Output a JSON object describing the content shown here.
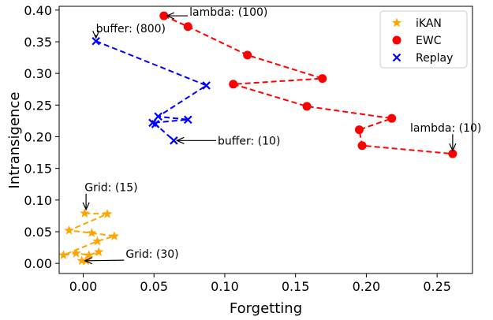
{
  "chart_data": {
    "type": "scatter",
    "title": "",
    "xlabel": "Forgetting",
    "ylabel": "Intransigence",
    "xlim": [
      -0.017,
      0.275
    ],
    "ylim": [
      -0.016,
      0.406
    ],
    "xticks": [
      0.0,
      0.05,
      0.1,
      0.15,
      0.2,
      0.25
    ],
    "xtick_labels": [
      "0.00",
      "0.05",
      "0.10",
      "0.15",
      "0.20",
      "0.25"
    ],
    "yticks": [
      0.0,
      0.05,
      0.1,
      0.15,
      0.2,
      0.25,
      0.3,
      0.35,
      0.4
    ],
    "ytick_labels": [
      "0.00",
      "0.05",
      "0.10",
      "0.15",
      "0.20",
      "0.25",
      "0.30",
      "0.35",
      "0.40"
    ],
    "grid": false,
    "legend_position": "top-right",
    "series": [
      {
        "name": "iKAN",
        "marker": "star",
        "color": "#FFA500",
        "linestyle": "dashed",
        "points": [
          {
            "x": 0.001,
            "y": 0.079
          },
          {
            "x": 0.017,
            "y": 0.078
          },
          {
            "x": -0.01,
            "y": 0.052
          },
          {
            "x": 0.006,
            "y": 0.048
          },
          {
            "x": 0.022,
            "y": 0.043
          },
          {
            "x": 0.01,
            "y": 0.035
          },
          {
            "x": -0.014,
            "y": 0.013
          },
          {
            "x": -0.005,
            "y": 0.016
          },
          {
            "x": 0.004,
            "y": 0.013
          },
          {
            "x": 0.011,
            "y": 0.018
          },
          {
            "x": 0.002,
            "y": 0.004
          },
          {
            "x": -0.001,
            "y": 0.004
          }
        ]
      },
      {
        "name": "EWC",
        "marker": "circle",
        "color": "#FF0000",
        "linestyle": "dashed",
        "points": [
          {
            "x": 0.057,
            "y": 0.391
          },
          {
            "x": 0.074,
            "y": 0.374
          },
          {
            "x": 0.116,
            "y": 0.329
          },
          {
            "x": 0.169,
            "y": 0.292
          },
          {
            "x": 0.106,
            "y": 0.283
          },
          {
            "x": 0.158,
            "y": 0.248
          },
          {
            "x": 0.218,
            "y": 0.229
          },
          {
            "x": 0.195,
            "y": 0.211
          },
          {
            "x": 0.197,
            "y": 0.186
          },
          {
            "x": 0.261,
            "y": 0.173
          }
        ]
      },
      {
        "name": "Replay",
        "marker": "x",
        "color": "#0000FF",
        "linestyle": "dashed",
        "points": [
          {
            "x": 0.009,
            "y": 0.351
          },
          {
            "x": 0.087,
            "y": 0.281
          },
          {
            "x": 0.053,
            "y": 0.232
          },
          {
            "x": 0.074,
            "y": 0.227
          },
          {
            "x": 0.049,
            "y": 0.222
          },
          {
            "x": 0.051,
            "y": 0.22
          },
          {
            "x": 0.064,
            "y": 0.194
          }
        ]
      }
    ],
    "annotations": [
      {
        "text": "lambda: (100)",
        "point": {
          "x": 0.057,
          "y": 0.391
        },
        "text_at": {
          "x": 0.075,
          "y": 0.397
        }
      },
      {
        "text": "buffer: (800)",
        "point": {
          "x": 0.009,
          "y": 0.351
        },
        "text_at": {
          "x": 0.009,
          "y": 0.371
        }
      },
      {
        "text": "buffer: (10)",
        "point": {
          "x": 0.064,
          "y": 0.194
        },
        "text_at": {
          "x": 0.095,
          "y": 0.194
        }
      },
      {
        "text": "lambda: (10)",
        "point": {
          "x": 0.261,
          "y": 0.173
        },
        "text_at": {
          "x": 0.231,
          "y": 0.214
        }
      },
      {
        "text": "Grid: (15)",
        "point": {
          "x": 0.002,
          "y": 0.08
        },
        "text_at": {
          "x": 0.001,
          "y": 0.12
        }
      },
      {
        "text": "Grid: (30)",
        "point": {
          "x": -0.001,
          "y": 0.004
        },
        "text_at": {
          "x": 0.03,
          "y": 0.015
        }
      }
    ]
  }
}
